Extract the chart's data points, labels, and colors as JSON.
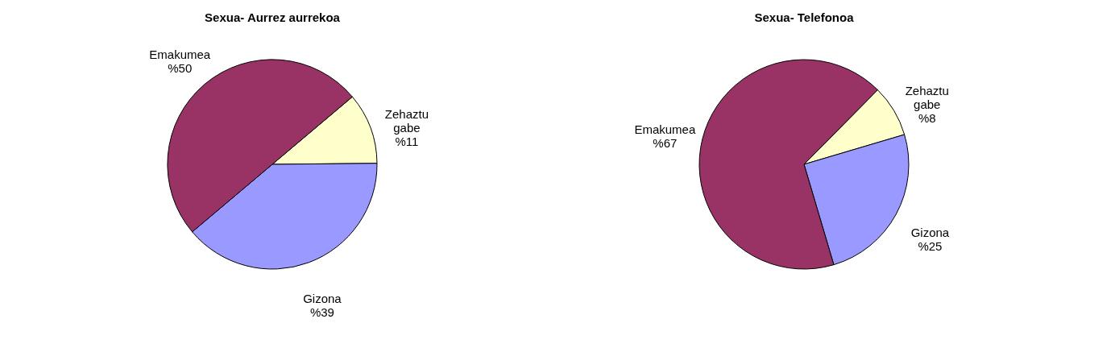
{
  "chart_data": [
    {
      "type": "pie",
      "title": "Sexua- Aurrez aurrekoa",
      "categories": [
        "Zehaztu gabe",
        "Gizona",
        "Emakumea"
      ],
      "values": [
        11,
        39,
        50
      ],
      "colors": [
        "#ffffcc",
        "#9999ff",
        "#993366"
      ],
      "value_labels": [
        "%11",
        "%39",
        "%50"
      ]
    },
    {
      "type": "pie",
      "title": "Sexua- Telefonoa",
      "categories": [
        "Zehaztu gabe",
        "Gizona",
        "Emakumea"
      ],
      "values": [
        8,
        25,
        67
      ],
      "colors": [
        "#ffffcc",
        "#9999ff",
        "#993366"
      ],
      "value_labels": [
        "%8",
        "%25",
        "%67"
      ]
    }
  ]
}
